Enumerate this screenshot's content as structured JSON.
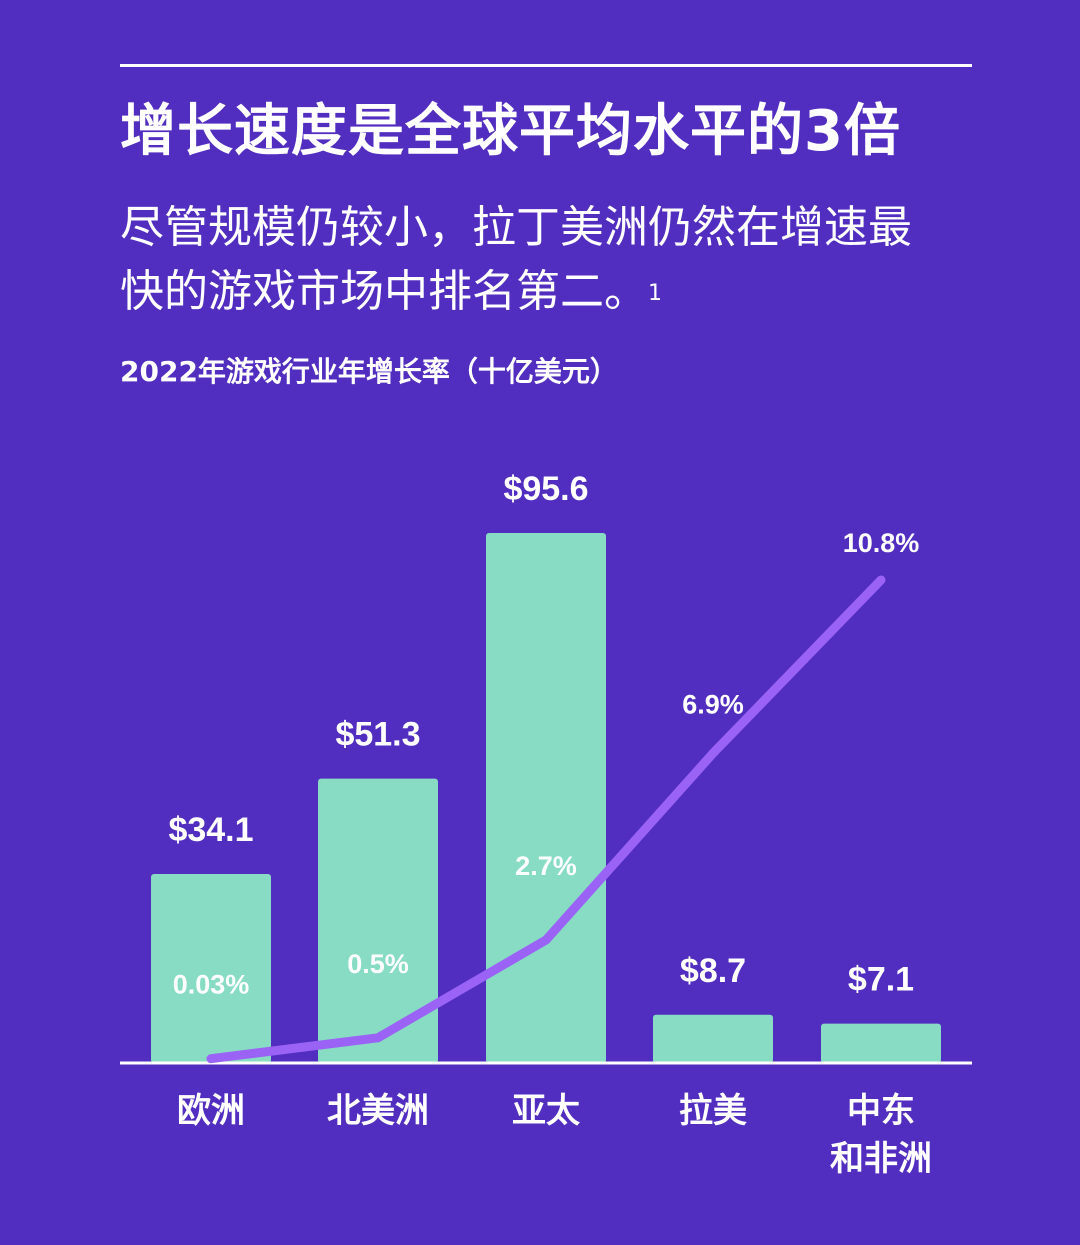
{
  "header": {
    "title": "增长速度是全球平均水平的3倍",
    "subtitle": "尽管规模仍较小，拉丁美洲仍然在增速最快的游戏市场中排名第二。",
    "footnote": "1"
  },
  "colors": {
    "background": "#512DC0",
    "bar": "#88DCC4",
    "line": "#9A63F5",
    "text": "#FFFFFF"
  },
  "chart_data": {
    "type": "bar",
    "title": "2022年游戏行业年增长率（十亿美元）",
    "categories": [
      "欧洲",
      "北美洲",
      "亚太",
      "拉美",
      "中东\n和非洲"
    ],
    "category_lines": [
      [
        "欧洲"
      ],
      [
        "北美洲"
      ],
      [
        "亚太"
      ],
      [
        "拉美"
      ],
      [
        "中东",
        "和非洲"
      ]
    ],
    "series": [
      {
        "type": "bar",
        "values": [
          34.1,
          51.3,
          95.6,
          8.7,
          7.1
        ],
        "labels": [
          "$34.1",
          "$51.3",
          "$95.6",
          "$8.7",
          "$7.1"
        ]
      },
      {
        "type": "line",
        "values": [
          0.03,
          0.5,
          2.7,
          6.9,
          10.8
        ],
        "labels": [
          "0.03%",
          "0.5%",
          "2.7%",
          "6.9%",
          "10.8%"
        ]
      }
    ],
    "grid": false,
    "legend": "none"
  }
}
